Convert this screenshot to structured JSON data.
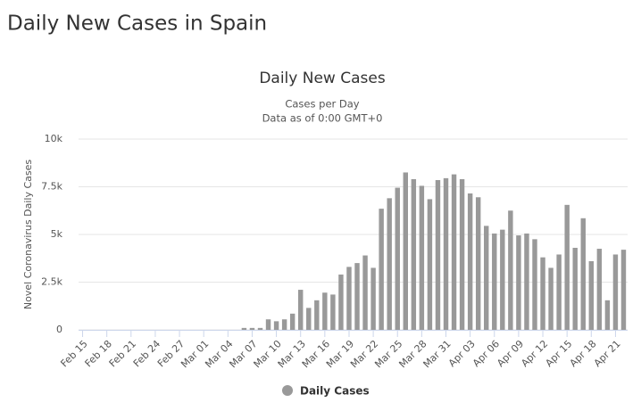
{
  "page_title": "Daily New Cases in Spain",
  "chart_data": {
    "type": "bar",
    "title": "Daily New Cases",
    "subtitle": [
      "Cases per Day",
      "Data as of 0:00 GMT+0"
    ],
    "y_label": "Novel Coronavirus Daily Cases",
    "categories": [
      "Feb 15",
      null,
      null,
      "Feb 18",
      null,
      null,
      "Feb 21",
      null,
      null,
      "Feb 24",
      null,
      null,
      "Feb 27",
      null,
      null,
      "Mar 01",
      null,
      null,
      "Mar 04",
      null,
      null,
      "Mar 07",
      null,
      null,
      "Mar 10",
      null,
      null,
      "Mar 13",
      null,
      null,
      "Mar 16",
      null,
      null,
      "Mar 19",
      null,
      null,
      "Mar 22",
      null,
      null,
      "Mar 25",
      null,
      null,
      "Mar 28",
      null,
      null,
      "Mar 31",
      null,
      null,
      "Apr 03",
      null,
      null,
      "Apr 06",
      null,
      null,
      "Apr 09",
      null,
      null,
      "Apr 12",
      null,
      null,
      "Apr 15",
      null,
      null,
      "Apr 18",
      null,
      null,
      "Apr 21",
      null
    ],
    "series": [
      {
        "name": "Daily Cases",
        "color": "#999999",
        "values": [
          0,
          0,
          0,
          0,
          0,
          0,
          0,
          0,
          0,
          0,
          0,
          0,
          0,
          0,
          0,
          0,
          0,
          0,
          0,
          0,
          100,
          100,
          100,
          550,
          450,
          550,
          850,
          2100,
          1150,
          1550,
          1950,
          1850,
          2900,
          3300,
          3500,
          3900,
          3250,
          6350,
          6900,
          7450,
          8250,
          7900,
          7550,
          6850,
          7850,
          7950,
          8150,
          7900,
          7150,
          6950,
          5450,
          5050,
          5250,
          6250,
          4950,
          5050,
          4750,
          3800,
          3250,
          3950,
          6550,
          4300,
          5850,
          3600,
          4250,
          1550,
          3950,
          4200
        ]
      }
    ],
    "ylim": [
      0,
      10000
    ],
    "yticks": [
      0,
      {
        "value": 2500,
        "label": "2.5k"
      },
      {
        "value": 5000,
        "label": "5k"
      },
      {
        "value": 7500,
        "label": "7.5k"
      },
      {
        "value": 10000,
        "label": "10k"
      }
    ],
    "grid": true
  }
}
